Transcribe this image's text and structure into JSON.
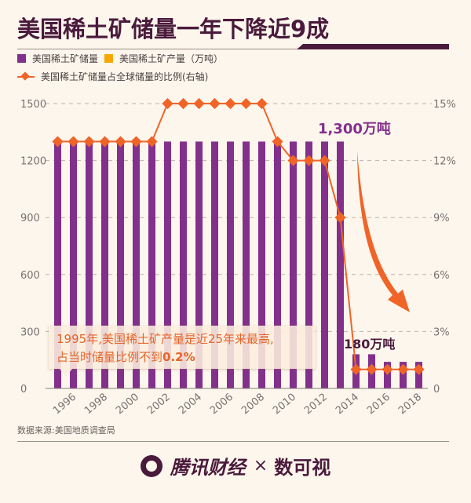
{
  "title": "美国稀土矿储量一年下降近9成",
  "legend": {
    "reserves": "美国稀土矿储量",
    "production": "美国稀土矿产量（万吨）",
    "ratio": "美国稀土矿储量占全球储量的比例(右轴)"
  },
  "colors": {
    "reserves": "#82308c",
    "production": "#f5a800",
    "ratio": "#f06428",
    "title": "#4a1a3c",
    "background": "#fcf6ec"
  },
  "annotations": {
    "peak_label": "1,300万吨",
    "low_label": "180万吨",
    "callout_line1": "1995年,美国稀土矿产量是近25年来最高,",
    "callout_line2_prefix": "占当时储量比例不到",
    "callout_line2_value": "0.2%"
  },
  "source": "数据来源:美国地质调查局",
  "footer": {
    "brand1": "腾讯财经",
    "times": "×",
    "brand2": "数可视"
  },
  "chart_data": {
    "type": "bar",
    "title": "美国稀土矿储量一年下降近9成",
    "x": [
      1995,
      1996,
      1997,
      1998,
      1999,
      2000,
      2001,
      2002,
      2003,
      2004,
      2005,
      2006,
      2007,
      2008,
      2009,
      2010,
      2011,
      2012,
      2013,
      2014,
      2015,
      2016,
      2017,
      2018
    ],
    "x_tick_labels": [
      "1996",
      "1998",
      "2000",
      "2002",
      "2004",
      "2006",
      "2008",
      "2010",
      "2012",
      "2014",
      "2016",
      "2018"
    ],
    "series": [
      {
        "name": "美国稀土矿储量",
        "type": "bar",
        "axis": "left",
        "values": [
          1300,
          1300,
          1300,
          1300,
          1300,
          1300,
          1300,
          1300,
          1300,
          1300,
          1300,
          1300,
          1300,
          1300,
          1300,
          1300,
          1300,
          1300,
          1300,
          180,
          180,
          140,
          140,
          140
        ]
      },
      {
        "name": "美国稀土矿产量（万吨）",
        "type": "bar",
        "axis": "left",
        "values": [
          2.2,
          0,
          0,
          0,
          0,
          0,
          0,
          0,
          0,
          0,
          0,
          0,
          0,
          0,
          0,
          0,
          0,
          0,
          0,
          0,
          0,
          0,
          0,
          0
        ]
      },
      {
        "name": "美国稀土矿储量占全球储量的比例(右轴)",
        "type": "line",
        "axis": "right",
        "unit": "%",
        "values": [
          13,
          13,
          13,
          13,
          13,
          13,
          13,
          15,
          15,
          15,
          15,
          15,
          15,
          15,
          13,
          12,
          12,
          12,
          9,
          1,
          1,
          1,
          1,
          1
        ]
      }
    ],
    "left_axis": {
      "ticks": [
        0,
        300,
        600,
        900,
        1200,
        1500
      ],
      "ylim": [
        0,
        1500
      ]
    },
    "right_axis": {
      "ticks": [
        "0",
        "3%",
        "6%",
        "9%",
        "12%",
        "15%"
      ],
      "ylim": [
        0,
        15
      ]
    },
    "grid": "dashed horizontal",
    "legend_position": "top-left"
  }
}
